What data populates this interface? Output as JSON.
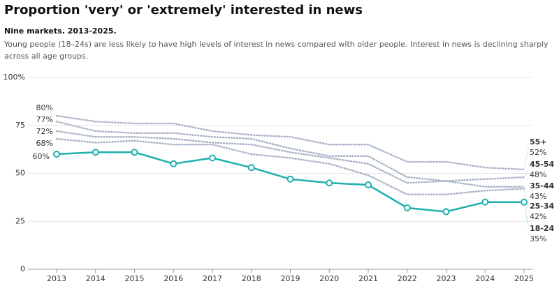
{
  "chart_data": {
    "type": "line",
    "title": "Proportion 'very' or 'extremely' interested in news",
    "subtitle": "Nine markets. 2013-2025.",
    "description": "Young people (18–24s) are less likely to have high levels of interest in news compared with older people. Interest in news is declining sharply across all age groups.",
    "categories": [
      "2013",
      "2014",
      "2015",
      "2016",
      "2017",
      "2018",
      "2019",
      "2020",
      "2021",
      "2022",
      "2023",
      "2024",
      "2025"
    ],
    "ylim": [
      0,
      100
    ],
    "yticks": [
      0,
      25,
      50,
      75,
      {
        "value": 100,
        "label": "100%"
      }
    ],
    "grid": true,
    "series": [
      {
        "name": "55+",
        "color": "#a8b2c6",
        "values": [
          80,
          77,
          76,
          76,
          72,
          70,
          69,
          65,
          65,
          56,
          56,
          53,
          52
        ],
        "value_labels": [
          "80%",
          null,
          null,
          null,
          null,
          null,
          null,
          null,
          null,
          null,
          null,
          null,
          "52%"
        ]
      },
      {
        "name": "45-54",
        "color": "#a8b2c6",
        "values": [
          77,
          72,
          71,
          71,
          69,
          68,
          63,
          59,
          59,
          48,
          46,
          47,
          48
        ],
        "value_labels": [
          "77%",
          null,
          null,
          null,
          null,
          null,
          null,
          null,
          null,
          null,
          null,
          null,
          "48%"
        ]
      },
      {
        "name": "35-44",
        "color": "#a8b2c6",
        "values": [
          72,
          69,
          69,
          68,
          66,
          65,
          61,
          58,
          55,
          45,
          46,
          43,
          43
        ],
        "value_labels": [
          "72%",
          null,
          null,
          null,
          null,
          null,
          null,
          null,
          null,
          null,
          null,
          null,
          "43%"
        ]
      },
      {
        "name": "25-34",
        "color": "#a8b2c6",
        "values": [
          68,
          66,
          67,
          65,
          65,
          60,
          58,
          55,
          49,
          39,
          39,
          41,
          42
        ],
        "value_labels": [
          "68%",
          null,
          null,
          null,
          null,
          null,
          null,
          null,
          null,
          null,
          null,
          null,
          "42%"
        ]
      },
      {
        "name": "18-24",
        "color": "#1fb0b0",
        "values": [
          60,
          61,
          61,
          55,
          58,
          53,
          47,
          45,
          44,
          32,
          30,
          35,
          35
        ],
        "value_labels": [
          "60%",
          null,
          null,
          null,
          null,
          null,
          null,
          null,
          null,
          null,
          null,
          null,
          "35%"
        ]
      }
    ]
  }
}
